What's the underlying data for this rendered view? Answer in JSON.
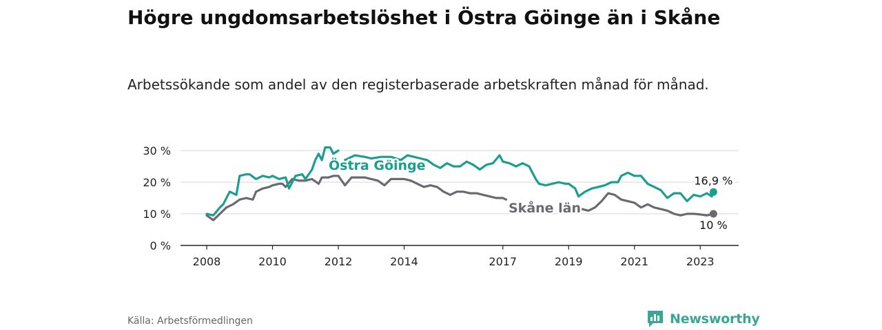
{
  "header": {
    "title": "Högre ungdomsarbetslöshet i Östra Göinge än i Skåne",
    "subtitle": "Arbetssökande som andel av den registerbaserade arbetskraften månad för månad."
  },
  "footer": {
    "source": "Källa: Arbetsförmedlingen",
    "brand": "Newsworthy"
  },
  "colors": {
    "primary": "#1a9e8f",
    "secondary": "#6b6970",
    "grid": "#d6d6d6",
    "axis": "#222222",
    "brand": "#3aa693"
  },
  "chart_data": {
    "type": "line",
    "title": "Högre ungdomsarbetslöshet i Östra Göinge än i Skåne",
    "xlabel": "",
    "ylabel": "",
    "xlim": [
      2007.5,
      2023.9
    ],
    "ylim": [
      0,
      30
    ],
    "yticks": [
      0,
      10,
      20,
      30
    ],
    "ytick_labels": [
      "0 %",
      "10 %",
      "20 %",
      "30 %"
    ],
    "xticks": [
      2008,
      2010,
      2012,
      2014,
      2017,
      2019,
      2021,
      2023
    ],
    "xtick_labels": [
      "2008",
      "2010",
      "2012",
      "2014",
      "2017",
      "2019",
      "2021",
      "2023"
    ],
    "grid": true,
    "series": [
      {
        "name": "Östra Göinge",
        "label": "Östra Göinge",
        "end_label": "16,9 %",
        "x": [
          2008.0,
          2008.2,
          2008.4,
          2008.5,
          2008.7,
          2008.9,
          2009.0,
          2009.2,
          2009.3,
          2009.5,
          2009.7,
          2009.9,
          2010.0,
          2010.2,
          2010.4,
          2010.5,
          2010.7,
          2010.9,
          2011.0,
          2011.2,
          2011.3,
          2011.4,
          2011.5,
          2011.6,
          2011.75,
          2011.85,
          2012.0
        ],
        "values": [
          10,
          9.5,
          12,
          13,
          17,
          16,
          22,
          22.5,
          22.5,
          21,
          22,
          21.5,
          22,
          21,
          21.5,
          18,
          22,
          22.5,
          21,
          24,
          27,
          29,
          27,
          31,
          31,
          29,
          30
        ],
        "x2": [
          2012.2,
          2012.5,
          2012.8,
          2013.0,
          2013.3,
          2013.6,
          2013.9,
          2014.1,
          2014.3,
          2014.5,
          2014.7,
          2014.9,
          2015.1,
          2015.3,
          2015.5,
          2015.7,
          2015.9,
          2016.1,
          2016.3,
          2016.5,
          2016.7,
          2016.9,
          2017.0,
          2017.2,
          2017.4,
          2017.6,
          2017.8,
          2018.0,
          2018.1,
          2018.3,
          2018.5,
          2018.7,
          2018.9,
          2019.0,
          2019.2,
          2019.3,
          2019.5,
          2019.7,
          2019.9,
          2020.1,
          2020.3,
          2020.5,
          2020.6,
          2020.8,
          2021.0,
          2021.2,
          2021.4,
          2021.6,
          2021.8,
          2022.0,
          2022.2,
          2022.4,
          2022.6,
          2022.8,
          2023.0,
          2023.2,
          2023.35,
          2023.4
        ],
        "values2": [
          27,
          28.5,
          28,
          27.5,
          28,
          28,
          27,
          28.5,
          28,
          27.5,
          27,
          25.5,
          24.5,
          26,
          25,
          25,
          26.5,
          25.5,
          24,
          25.5,
          26,
          28.5,
          26.5,
          26,
          25,
          26,
          25,
          21,
          19.5,
          19,
          19.5,
          20,
          19.5,
          19.5,
          18,
          15.5,
          17,
          18,
          18.5,
          19,
          20,
          20,
          22,
          23,
          22,
          22,
          19.5,
          18.5,
          17.5,
          15,
          16.5,
          16.5,
          14,
          16,
          15.5,
          16.5,
          15.5,
          16.9
        ]
      },
      {
        "name": "Skåne län",
        "label": "Skåne län",
        "end_label": "10 %",
        "x": [
          2008.0,
          2008.2,
          2008.4,
          2008.6,
          2008.8,
          2009.0,
          2009.2,
          2009.4,
          2009.5,
          2009.7,
          2009.9,
          2010.0,
          2010.2,
          2010.3,
          2010.4,
          2010.6,
          2010.8,
          2011.0,
          2011.2,
          2011.4,
          2011.5,
          2011.7,
          2011.85,
          2012.0,
          2012.2,
          2012.4,
          2012.6,
          2012.8,
          2013.0,
          2013.2,
          2013.4,
          2013.6,
          2013.8,
          2014.0,
          2014.2,
          2014.4,
          2014.6,
          2014.8,
          2015.0,
          2015.2,
          2015.4,
          2015.6,
          2015.8,
          2016.0,
          2016.2,
          2016.4,
          2016.6,
          2016.8,
          2017.0,
          2017.1
        ],
        "values": [
          9.5,
          8,
          10,
          12,
          13,
          14.5,
          15,
          14.5,
          17,
          18,
          18.5,
          19,
          19.5,
          19.5,
          18.5,
          21,
          20.5,
          20.5,
          21,
          19.5,
          21.5,
          21.5,
          22,
          22,
          19,
          21.5,
          21.5,
          21.5,
          21,
          20.5,
          19,
          21,
          21,
          21,
          20.5,
          19.5,
          18.5,
          19,
          18.5,
          17,
          16,
          17,
          17,
          16.5,
          16.5,
          16,
          15.5,
          15,
          15,
          14.5
        ],
        "x2": [
          2019.0,
          2019.2,
          2019.4,
          2019.6,
          2019.8,
          2020.0,
          2020.2,
          2020.4,
          2020.6,
          2020.8,
          2021.0,
          2021.2,
          2021.4,
          2021.6,
          2021.8,
          2022.0,
          2022.2,
          2022.4,
          2022.6,
          2022.8,
          2023.0,
          2023.2,
          2023.4
        ],
        "values2": [
          11,
          11.5,
          11.5,
          11,
          12,
          14,
          16.5,
          16,
          14.5,
          14,
          13.5,
          12,
          13,
          12,
          11.5,
          11,
          10,
          9.5,
          10,
          10,
          9.8,
          9.5,
          10
        ]
      }
    ]
  }
}
